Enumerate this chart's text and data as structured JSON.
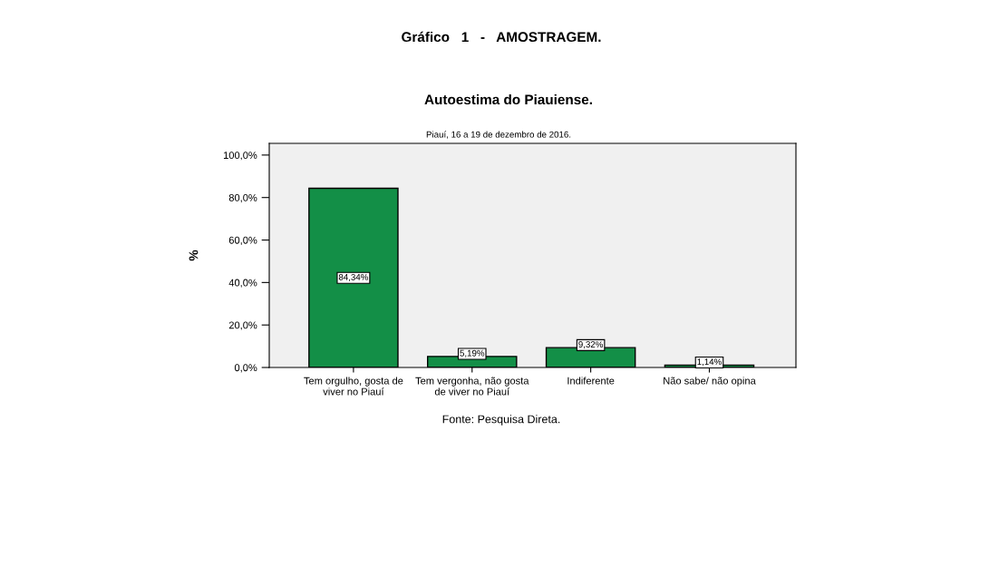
{
  "chart_data": {
    "type": "bar",
    "title": "Autoestima do Piauiense.",
    "subtitle": "Piauí, 16 a 19 de dezembro de 2016.",
    "ylabel": "%",
    "categories": [
      "Tem orgulho, gosta de\nviver no Piauí",
      "Tem vergonha, não gosta\nde viver no Piauí",
      "Indiferente",
      "Não sabe/ não opina"
    ],
    "values": [
      84.34,
      5.19,
      9.32,
      1.14
    ],
    "value_labels": [
      "84,34%",
      "5,19%",
      "9,32%",
      "1,14%"
    ],
    "color": "#138f47",
    "ylim": [
      0,
      105.5
    ],
    "yticks": [
      {
        "value": 0,
        "label": "0,0%"
      },
      {
        "value": 20,
        "label": "20,0%"
      },
      {
        "value": 40,
        "label": "40,0%"
      },
      {
        "value": 60,
        "label": "60,0%"
      },
      {
        "value": 80,
        "label": "80,0%"
      },
      {
        "value": 100,
        "label": "100,0%"
      }
    ],
    "grid": false,
    "annotations": [
      "Gráfico   1   -   AMOSTRAGEM.",
      "Fonte: Pesquisa Direta."
    ]
  }
}
